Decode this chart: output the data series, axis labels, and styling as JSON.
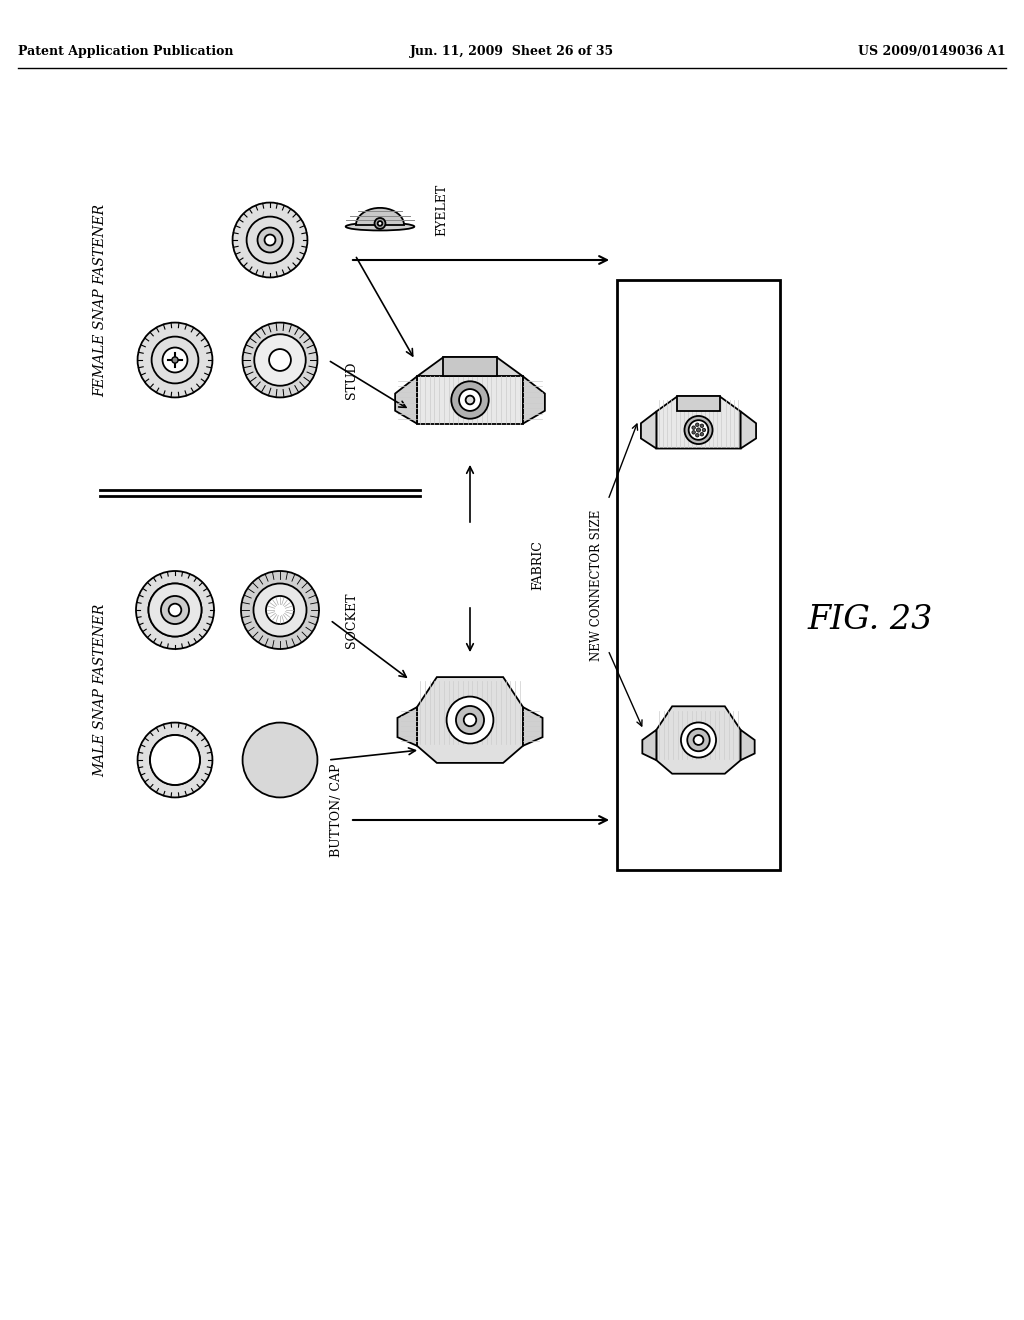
{
  "bg_color": "#ffffff",
  "header_left": "Patent Application Publication",
  "header_center": "Jun. 11, 2009  Sheet 26 of 35",
  "header_right": "US 2009/0149036 A1",
  "fig_label": "FIG. 23",
  "title_female": "FEMALE SNAP FASTENER",
  "title_male": "MALE SNAP FASTENER",
  "label_eyelet": "EYELET",
  "label_stud": "STUD",
  "label_socket": "SOCKET",
  "label_button": "BUTTON/ CAP",
  "label_fabric": "FABRIC",
  "label_new_size": "NEW CONNECTOR SIZE"
}
